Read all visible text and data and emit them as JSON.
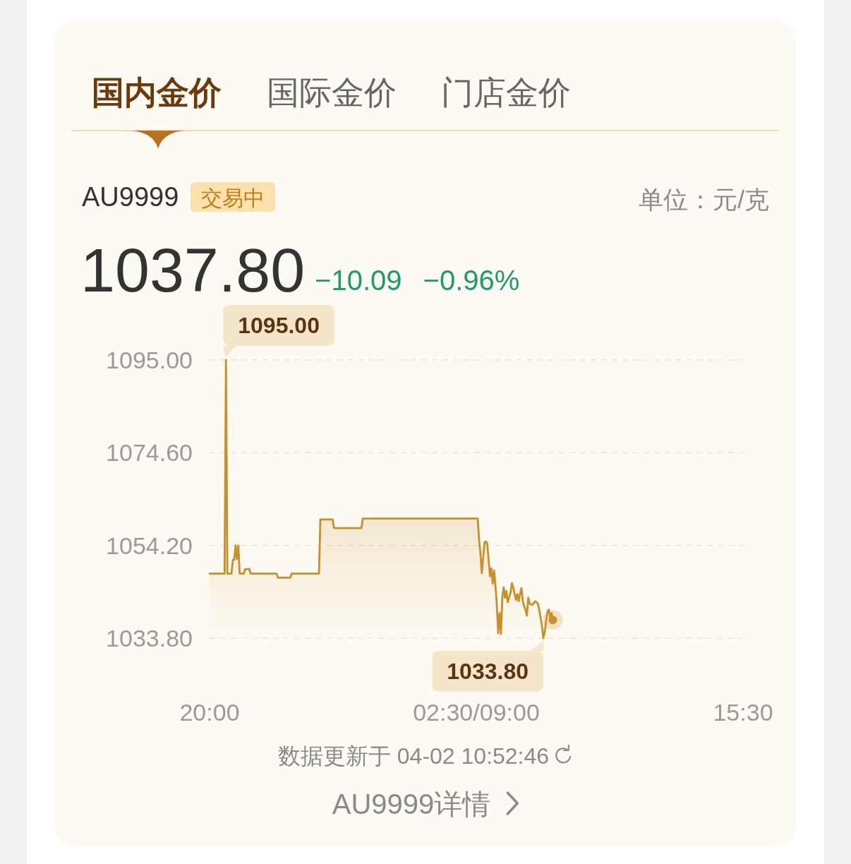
{
  "chart_data": {
    "type": "area",
    "title": "AU9999",
    "subtitle": "交易中",
    "annotations": [
      "国内金价",
      "国际金价",
      "门店金价",
      "单位：元/克",
      "1037.80",
      "−10.09",
      "−0.96%",
      "数据更新于 04-02 10:52:46",
      "AU9999详情",
      "1095.00",
      {
        "text": "1033.80",
        "y": 1033.8
      }
    ],
    "categories": [
      "20:00",
      null,
      null,
      null,
      null,
      null,
      null,
      null,
      null,
      null,
      null,
      null,
      null,
      null,
      null,
      null,
      null,
      null,
      null,
      null,
      null,
      null,
      null,
      null,
      null,
      null,
      null,
      null,
      null,
      null,
      null,
      null,
      null,
      null,
      null,
      null,
      null,
      null,
      null,
      null,
      null,
      null,
      null,
      null,
      null,
      null,
      null,
      null,
      null,
      null,
      null,
      null,
      null,
      null,
      null,
      null,
      null,
      null,
      null,
      null,
      null,
      null,
      null,
      null,
      null,
      null,
      null,
      null,
      null,
      null,
      null,
      null,
      null,
      null,
      null,
      null,
      null,
      null,
      null,
      null,
      null,
      null,
      null,
      null,
      null,
      null,
      null,
      null,
      null,
      null,
      null,
      null,
      null,
      null,
      null,
      null,
      null,
      null,
      null,
      null,
      null,
      null,
      null,
      null,
      null,
      null,
      null,
      null,
      null,
      null,
      null,
      null,
      null,
      null,
      null,
      null,
      null,
      null,
      null,
      null,
      null,
      null,
      null,
      null,
      null,
      null,
      null,
      null,
      null,
      null,
      null,
      null,
      null,
      null,
      null,
      null,
      null,
      null,
      null,
      null,
      null,
      null,
      null,
      null,
      null,
      null,
      null,
      null,
      null,
      null,
      null,
      null,
      null,
      null,
      null,
      null,
      null,
      null,
      null,
      null,
      null,
      null,
      null,
      null,
      null,
      null,
      null,
      null,
      null,
      null,
      null,
      null,
      null,
      null,
      null,
      null,
      null,
      null,
      null,
      null,
      null,
      null,
      null,
      null,
      null,
      null,
      null,
      null,
      null,
      null,
      null,
      null,
      null,
      null,
      null,
      "02:30/09:00",
      null,
      null,
      null,
      null,
      null,
      null,
      null,
      null,
      null,
      null,
      null,
      null,
      null,
      null,
      null,
      null,
      null,
      null,
      null,
      null,
      null,
      null,
      null,
      null,
      null,
      null,
      null,
      null,
      null,
      null,
      null,
      null,
      null,
      null,
      null,
      null,
      null,
      null,
      null,
      null,
      null,
      null,
      null,
      null,
      null,
      null,
      null,
      null,
      null,
      null,
      null,
      null,
      null,
      null,
      null,
      null,
      null,
      null,
      null,
      null,
      null,
      null,
      null,
      null,
      null,
      null,
      null,
      null,
      null,
      null,
      null,
      null,
      null,
      null,
      null,
      null,
      null,
      null,
      null,
      null,
      null,
      null,
      null,
      null,
      null,
      null,
      null,
      null,
      null,
      null,
      null,
      null,
      null,
      null,
      null,
      null,
      null,
      null,
      null,
      null,
      null,
      null,
      null,
      null,
      null,
      null,
      null,
      null,
      null,
      null,
      null,
      null,
      null,
      null,
      null,
      null,
      null,
      null,
      null,
      null,
      null,
      null,
      null,
      null,
      null,
      null,
      null,
      null,
      null,
      null,
      null,
      null,
      null,
      null,
      null,
      null,
      null,
      null,
      null,
      null,
      null,
      null,
      null,
      null,
      null,
      null,
      null,
      null,
      null,
      null,
      null,
      null,
      null,
      null,
      null,
      null,
      null,
      null,
      null,
      null,
      null,
      null,
      null,
      null,
      null,
      null,
      null,
      null,
      null,
      null,
      null,
      null,
      null,
      null,
      null,
      null,
      null,
      null,
      null,
      null,
      null,
      null,
      null,
      null,
      null,
      null,
      null,
      null,
      null,
      null,
      null,
      null,
      null,
      null,
      "15:30"
    ],
    "ylim": [
      1033.8,
      1095.0
    ],
    "yticks": [
      {
        "value": 1033.8,
        "label": "1033.80"
      },
      {
        "value": 1054.2,
        "label": "1054.20"
      },
      {
        "value": 1074.6,
        "label": "1074.60"
      },
      {
        "value": 1095.0,
        "label": "1095.00"
      }
    ],
    "grid": "y",
    "series": [
      {
        "color": "#c8902a",
        "values": [
          1048.0,
          1048.0,
          1048.0,
          1048.0,
          1048.0,
          1048.0,
          1048.0,
          1048.0,
          1048.0,
          1048.0,
          1048.0,
          1048.0,
          1095.0,
          1048.0,
          1048.0,
          1048.0,
          1048.0,
          1051.0,
          1051.0,
          1054.2,
          1051.2,
          1054.2,
          1048.0,
          1048.0,
          1048.0,
          1048.0,
          1049.0,
          1049.0,
          1049.0,
          1049.0,
          1048.0,
          1048.0,
          1048.0,
          1048.0,
          1048.0,
          1048.0,
          1048.0,
          1048.0,
          1048.0,
          1048.0,
          1048.0,
          1048.0,
          1048.0,
          1048.0,
          1048.0,
          1048.0,
          1048.0,
          1048.0,
          1048.0,
          1048.0,
          1047.1,
          1047.1,
          1047.1,
          1047.1,
          1047.1,
          1047.1,
          1047.1,
          1047.1,
          1047.1,
          1047.1,
          1048.0,
          1048.0,
          1048.0,
          1048.0,
          1048.0,
          1048.0,
          1048.0,
          1048.0,
          1048.0,
          1048.0,
          1048.0,
          1048.0,
          1048.0,
          1048.0,
          1048.0,
          1048.0,
          1048.0,
          1048.0,
          1048.0,
          1048.0,
          1048.0,
          1059.9,
          1059.9,
          1059.9,
          1059.9,
          1059.9,
          1059.9,
          1059.9,
          1059.9,
          1059.9,
          1059.9,
          1058.0,
          1058.0,
          1058.0,
          1058.0,
          1058.0,
          1058.0,
          1058.0,
          1058.0,
          1058.0,
          1058.0,
          1058.0,
          1058.0,
          1058.0,
          1058.0,
          1058.0,
          1058.0,
          1058.0,
          1058.0,
          1058.0,
          1058.0,
          1058.0,
          1060.1,
          1060.1,
          1060.1,
          1060.1,
          1060.1,
          1060.1,
          1060.1,
          1060.1,
          1060.1,
          1060.1,
          1060.1,
          1060.1,
          1060.1,
          1060.1,
          1060.1,
          1060.1,
          1060.1,
          1060.1,
          1060.1,
          1060.1,
          1060.1,
          1060.1,
          1060.1,
          1060.1,
          1060.1,
          1060.1,
          1060.1,
          1060.1,
          1060.1,
          1060.1,
          1060.1,
          1060.1,
          1060.1,
          1060.1,
          1060.1,
          1060.1,
          1060.1,
          1060.1,
          1060.1,
          1060.1,
          1060.1,
          1060.1,
          1060.1,
          1060.1,
          1060.1,
          1060.1,
          1060.1,
          1060.1,
          1060.1,
          1060.1,
          1060.1,
          1060.1,
          1060.1,
          1060.1,
          1060.1,
          1060.1,
          1060.1,
          1060.1,
          1060.1,
          1060.1,
          1060.1,
          1060.1,
          1060.1,
          1060.1,
          1060.1,
          1060.1,
          1060.1,
          1060.1,
          1060.1,
          1060.1,
          1060.1,
          1060.1,
          1060.1,
          1060.1,
          1060.1,
          1060.1,
          1060.1,
          1060.1,
          1060.1,
          1060.1,
          1060.1,
          1060.1,
          1060.1,
          1060.1,
          1060.1,
          1055.6,
          1052.5,
          1048.1,
          1051.5,
          1054.9,
          1055.1,
          1054.6,
          1051.0,
          1047.4,
          1049.2,
          1045.8,
          1048.7,
          1045.3,
          1041.2,
          1034.9,
          1039.3,
          1034.7,
          1042.7,
          1045.0,
          1042.7,
          1044.2,
          1041.7,
          1042.8,
          1043.7,
          1045.9,
          1045.0,
          1043.5,
          1042.2,
          1043.5,
          1041.9,
          1043.5,
          1044.8,
          1041.9,
          1040.8,
          1040.0,
          1038.8,
          1042.7,
          1041.4,
          1041.2,
          1041.1,
          1041.5,
          1041.9,
          1041.7,
          1041.4,
          1040.1,
          1038.3,
          1036.5,
          1033.8,
          1035.0,
          1037.5,
          1039.6,
          1040.1,
          1038.3,
          1039.3,
          1037.8,
          null,
          null,
          null,
          null,
          null,
          null,
          null,
          null,
          null,
          null,
          null,
          null,
          null,
          null,
          null,
          null,
          null,
          null,
          null,
          null,
          null,
          null,
          null,
          null,
          null,
          null,
          null,
          null,
          null,
          null,
          null,
          null,
          null,
          null,
          null,
          null,
          null,
          null,
          null,
          null,
          null,
          null,
          null,
          null,
          null,
          null,
          null,
          null,
          null,
          null,
          null,
          null,
          null,
          null,
          null,
          null,
          null,
          null,
          null,
          null,
          null,
          null,
          null,
          null,
          null,
          null,
          null,
          null,
          null,
          null,
          null,
          null,
          null,
          null,
          null,
          null,
          null,
          null,
          null,
          null,
          null,
          null,
          null,
          null,
          null,
          null,
          null,
          null,
          null,
          null,
          null,
          null,
          null,
          null,
          null,
          null,
          null,
          null,
          null,
          null,
          null,
          null,
          null,
          null,
          null,
          null,
          null,
          null,
          null,
          null,
          null,
          null,
          null,
          null,
          null,
          null,
          null,
          null,
          null,
          null,
          null,
          null,
          null,
          null,
          null,
          null,
          null,
          null,
          null,
          null,
          null,
          null,
          null,
          null,
          null,
          null,
          null,
          null,
          null
        ]
      },
      {
        "type": "scatter",
        "color": "#c8902a",
        "values": [
          null,
          null,
          null,
          null,
          null,
          null,
          null,
          null,
          null,
          null,
          null,
          null,
          null,
          null,
          null,
          null,
          null,
          null,
          null,
          null,
          null,
          null,
          null,
          null,
          null,
          null,
          null,
          null,
          null,
          null,
          null,
          null,
          null,
          null,
          null,
          null,
          null,
          null,
          null,
          null,
          null,
          null,
          null,
          null,
          null,
          null,
          null,
          null,
          null,
          null,
          null,
          null,
          null,
          null,
          null,
          null,
          null,
          null,
          null,
          null,
          null,
          null,
          null,
          null,
          null,
          null,
          null,
          null,
          null,
          null,
          null,
          null,
          null,
          null,
          null,
          null,
          null,
          null,
          null,
          null,
          null,
          null,
          null,
          null,
          null,
          null,
          null,
          null,
          null,
          null,
          null,
          null,
          null,
          null,
          null,
          null,
          null,
          null,
          null,
          null,
          null,
          null,
          null,
          null,
          null,
          null,
          null,
          null,
          null,
          null,
          null,
          null,
          null,
          null,
          null,
          null,
          null,
          null,
          null,
          null,
          null,
          null,
          null,
          null,
          null,
          null,
          null,
          null,
          null,
          null,
          null,
          null,
          null,
          null,
          null,
          null,
          null,
          null,
          null,
          null,
          null,
          null,
          null,
          null,
          null,
          null,
          null,
          null,
          null,
          null,
          null,
          null,
          null,
          null,
          null,
          null,
          null,
          null,
          null,
          null,
          null,
          null,
          null,
          null,
          null,
          null,
          null,
          null,
          null,
          null,
          null,
          null,
          null,
          null,
          null,
          null,
          null,
          null,
          null,
          null,
          null,
          null,
          null,
          null,
          null,
          null,
          null,
          null,
          null,
          null,
          null,
          null,
          null,
          null,
          null,
          null,
          null,
          null,
          null,
          null,
          null,
          null,
          null,
          null,
          null,
          null,
          null,
          null,
          null,
          null,
          null,
          null,
          null,
          null,
          null,
          null,
          null,
          null,
          null,
          null,
          null,
          null,
          null,
          null,
          null,
          null,
          null,
          null,
          null,
          null,
          null,
          null,
          null,
          null,
          null,
          null,
          null,
          null,
          null,
          null,
          null,
          null,
          null,
          null,
          null,
          null,
          null,
          null,
          null,
          null,
          null,
          1037.8,
          null,
          null,
          null,
          null,
          null,
          null,
          null,
          null,
          null,
          null,
          null,
          null,
          null,
          null,
          null,
          null,
          null,
          null,
          null,
          null,
          null,
          null,
          null,
          null,
          null,
          null,
          null,
          null,
          null,
          null,
          null,
          null,
          null,
          null,
          null,
          null,
          null,
          null,
          null,
          null,
          null,
          null,
          null,
          null,
          null,
          null,
          null,
          null,
          null,
          null,
          null,
          null,
          null,
          null,
          null,
          null,
          null,
          null,
          null,
          null,
          null,
          null,
          null,
          null,
          null,
          null,
          null,
          null,
          null,
          null,
          null,
          null,
          null,
          null,
          null,
          null,
          null,
          null,
          null,
          null,
          null,
          null,
          null,
          null,
          null,
          null,
          null,
          null,
          null,
          null,
          null,
          null,
          null,
          null,
          null,
          null,
          null,
          null,
          null,
          null,
          null,
          null,
          null,
          null,
          null,
          null,
          null,
          null,
          null,
          null,
          null,
          null,
          null,
          null,
          null,
          null,
          null,
          null,
          null,
          null,
          null,
          null,
          null,
          null,
          null,
          null,
          null,
          null,
          null,
          null,
          null,
          null,
          null,
          null,
          null,
          null,
          null,
          null,
          null
        ]
      }
    ]
  }
}
